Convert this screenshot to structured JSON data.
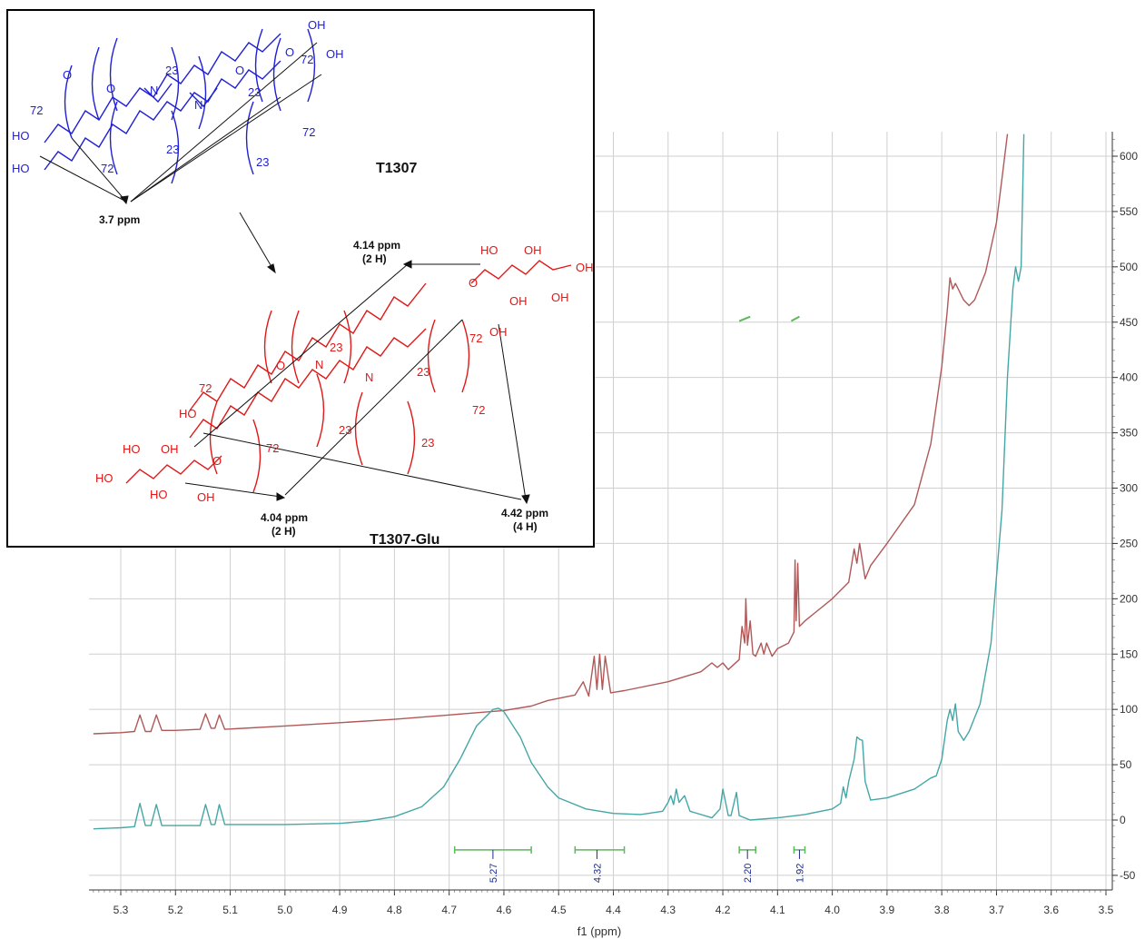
{
  "chart_data": {
    "type": "line",
    "xlabel": "f1 (ppm)",
    "x_reversed": true,
    "xlim": [
      5.35,
      3.5
    ],
    "ylim": [
      -58,
      620
    ],
    "x_ticks": [
      "5.3",
      "5.2",
      "5.1",
      "5.0",
      "4.9",
      "4.8",
      "4.7",
      "4.6",
      "4.5",
      "4.4",
      "4.3",
      "4.2",
      "4.1",
      "4.0",
      "3.9",
      "3.8",
      "3.7",
      "3.6",
      "3.5"
    ],
    "y_ticks": [
      "-50",
      "0",
      "50",
      "100",
      "150",
      "200",
      "250",
      "300",
      "350",
      "400",
      "450",
      "500",
      "550",
      "600"
    ],
    "grid": true,
    "colors": {
      "red_series": "#b05858",
      "teal_series": "#45a6a6",
      "integral": "#5cb85c",
      "integral_text": "#1a2a8a"
    },
    "series": [
      {
        "color": "#b05858",
        "points": [
          [
            5.35,
            78
          ],
          [
            5.3,
            79
          ],
          [
            5.275,
            80
          ],
          [
            5.265,
            95
          ],
          [
            5.255,
            80
          ],
          [
            5.245,
            80
          ],
          [
            5.235,
            95
          ],
          [
            5.225,
            81
          ],
          [
            5.2,
            81
          ],
          [
            5.155,
            82
          ],
          [
            5.145,
            96
          ],
          [
            5.135,
            83
          ],
          [
            5.128,
            83
          ],
          [
            5.12,
            95
          ],
          [
            5.11,
            82
          ],
          [
            5.0,
            85
          ],
          [
            4.9,
            88
          ],
          [
            4.8,
            91
          ],
          [
            4.7,
            95
          ],
          [
            4.6,
            99
          ],
          [
            4.55,
            103
          ],
          [
            4.52,
            108
          ],
          [
            4.47,
            113
          ],
          [
            4.455,
            125
          ],
          [
            4.445,
            112
          ],
          [
            4.435,
            148
          ],
          [
            4.43,
            118
          ],
          [
            4.425,
            150
          ],
          [
            4.42,
            118
          ],
          [
            4.415,
            148
          ],
          [
            4.405,
            115
          ],
          [
            4.38,
            117
          ],
          [
            4.3,
            125
          ],
          [
            4.24,
            134
          ],
          [
            4.22,
            142
          ],
          [
            4.21,
            138
          ],
          [
            4.2,
            142
          ],
          [
            4.19,
            136
          ],
          [
            4.17,
            145
          ],
          [
            4.165,
            175
          ],
          [
            4.16,
            160
          ],
          [
            4.158,
            200
          ],
          [
            4.155,
            158
          ],
          [
            4.15,
            180
          ],
          [
            4.145,
            150
          ],
          [
            4.14,
            148
          ],
          [
            4.13,
            160
          ],
          [
            4.125,
            150
          ],
          [
            4.12,
            160
          ],
          [
            4.11,
            148
          ],
          [
            4.1,
            155
          ],
          [
            4.08,
            160
          ],
          [
            4.07,
            170
          ],
          [
            4.068,
            235
          ],
          [
            4.066,
            180
          ],
          [
            4.063,
            232
          ],
          [
            4.06,
            175
          ],
          [
            4.05,
            180
          ],
          [
            4.03,
            188
          ],
          [
            4.0,
            200
          ],
          [
            3.97,
            215
          ],
          [
            3.96,
            245
          ],
          [
            3.955,
            232
          ],
          [
            3.95,
            250
          ],
          [
            3.94,
            218
          ],
          [
            3.93,
            230
          ],
          [
            3.9,
            250
          ],
          [
            3.85,
            285
          ],
          [
            3.82,
            340
          ],
          [
            3.8,
            410
          ],
          [
            3.79,
            460
          ],
          [
            3.785,
            490
          ],
          [
            3.78,
            480
          ],
          [
            3.775,
            485
          ],
          [
            3.77,
            480
          ],
          [
            3.76,
            470
          ],
          [
            3.75,
            465
          ],
          [
            3.74,
            470
          ],
          [
            3.72,
            495
          ],
          [
            3.7,
            540
          ],
          [
            3.69,
            580
          ],
          [
            3.68,
            620
          ]
        ]
      },
      {
        "color": "#45a6a6",
        "points": [
          [
            5.35,
            -8
          ],
          [
            5.3,
            -7
          ],
          [
            5.275,
            -6
          ],
          [
            5.265,
            15
          ],
          [
            5.255,
            -5
          ],
          [
            5.245,
            -5
          ],
          [
            5.235,
            14
          ],
          [
            5.225,
            -5
          ],
          [
            5.2,
            -5
          ],
          [
            5.155,
            -5
          ],
          [
            5.145,
            14
          ],
          [
            5.135,
            -4
          ],
          [
            5.128,
            -4
          ],
          [
            5.12,
            14
          ],
          [
            5.11,
            -4
          ],
          [
            5.0,
            -4
          ],
          [
            4.9,
            -3
          ],
          [
            4.85,
            -1
          ],
          [
            4.8,
            3
          ],
          [
            4.75,
            12
          ],
          [
            4.71,
            30
          ],
          [
            4.68,
            55
          ],
          [
            4.65,
            85
          ],
          [
            4.62,
            100
          ],
          [
            4.61,
            101
          ],
          [
            4.6,
            98
          ],
          [
            4.57,
            75
          ],
          [
            4.55,
            52
          ],
          [
            4.52,
            30
          ],
          [
            4.5,
            20
          ],
          [
            4.45,
            10
          ],
          [
            4.4,
            6
          ],
          [
            4.35,
            5
          ],
          [
            4.31,
            8
          ],
          [
            4.3,
            16
          ],
          [
            4.295,
            22
          ],
          [
            4.29,
            14
          ],
          [
            4.285,
            28
          ],
          [
            4.28,
            16
          ],
          [
            4.27,
            22
          ],
          [
            4.26,
            8
          ],
          [
            4.22,
            2
          ],
          [
            4.205,
            10
          ],
          [
            4.2,
            28
          ],
          [
            4.19,
            4
          ],
          [
            4.185,
            4
          ],
          [
            4.175,
            25
          ],
          [
            4.17,
            4
          ],
          [
            4.15,
            0
          ],
          [
            4.1,
            2
          ],
          [
            4.05,
            5
          ],
          [
            4.0,
            10
          ],
          [
            3.985,
            15
          ],
          [
            3.98,
            30
          ],
          [
            3.975,
            20
          ],
          [
            3.97,
            35
          ],
          [
            3.96,
            55
          ],
          [
            3.955,
            75
          ],
          [
            3.95,
            73
          ],
          [
            3.945,
            72
          ],
          [
            3.94,
            35
          ],
          [
            3.93,
            18
          ],
          [
            3.9,
            20
          ],
          [
            3.85,
            28
          ],
          [
            3.82,
            38
          ],
          [
            3.81,
            40
          ],
          [
            3.8,
            55
          ],
          [
            3.79,
            90
          ],
          [
            3.785,
            100
          ],
          [
            3.78,
            90
          ],
          [
            3.775,
            105
          ],
          [
            3.77,
            80
          ],
          [
            3.76,
            72
          ],
          [
            3.75,
            80
          ],
          [
            3.73,
            105
          ],
          [
            3.71,
            160
          ],
          [
            3.69,
            280
          ],
          [
            3.68,
            400
          ],
          [
            3.67,
            480
          ],
          [
            3.665,
            500
          ],
          [
            3.66,
            487
          ],
          [
            3.655,
            500
          ],
          [
            3.65,
            620
          ]
        ]
      }
    ],
    "integrals": [
      {
        "x_center": 4.62,
        "x_range": [
          4.69,
          4.55
        ],
        "label": "5.27"
      },
      {
        "x_center": 4.43,
        "x_range": [
          4.47,
          4.38
        ],
        "label": "4.32"
      },
      {
        "x_center": 4.155,
        "x_range": [
          4.17,
          4.14
        ],
        "label": "2.20"
      },
      {
        "x_center": 4.06,
        "x_range": [
          4.07,
          4.05
        ],
        "label": "1.92"
      }
    ],
    "integral_curves": [
      {
        "x": [
          4.67,
          4.55
        ],
        "y": [
          451,
          455
        ]
      },
      {
        "x": [
          4.17,
          4.15
        ],
        "y": [
          451,
          455
        ]
      },
      {
        "x": [
          4.075,
          4.06
        ],
        "y": [
          451,
          455
        ]
      }
    ]
  },
  "inset": {
    "title_top": "T1307",
    "title_bottom": "T1307-Glu",
    "ann_37": "3.7 ppm",
    "ann_414": "4.14 ppm",
    "ann_414_h": "(2 H)",
    "ann_404": "4.04 ppm",
    "ann_404_h": "(2 H)",
    "ann_442": "4.42 ppm",
    "ann_442_h": "(4 H)",
    "blue_labels": {
      "oh": "OH",
      "ho": "HO",
      "o": "O",
      "n": "N",
      "n23": "23",
      "n72": "72"
    },
    "red_labels": {
      "oh": "OH",
      "ho": "HO",
      "o": "O",
      "n": "N",
      "n23": "23",
      "n72": "72"
    }
  }
}
